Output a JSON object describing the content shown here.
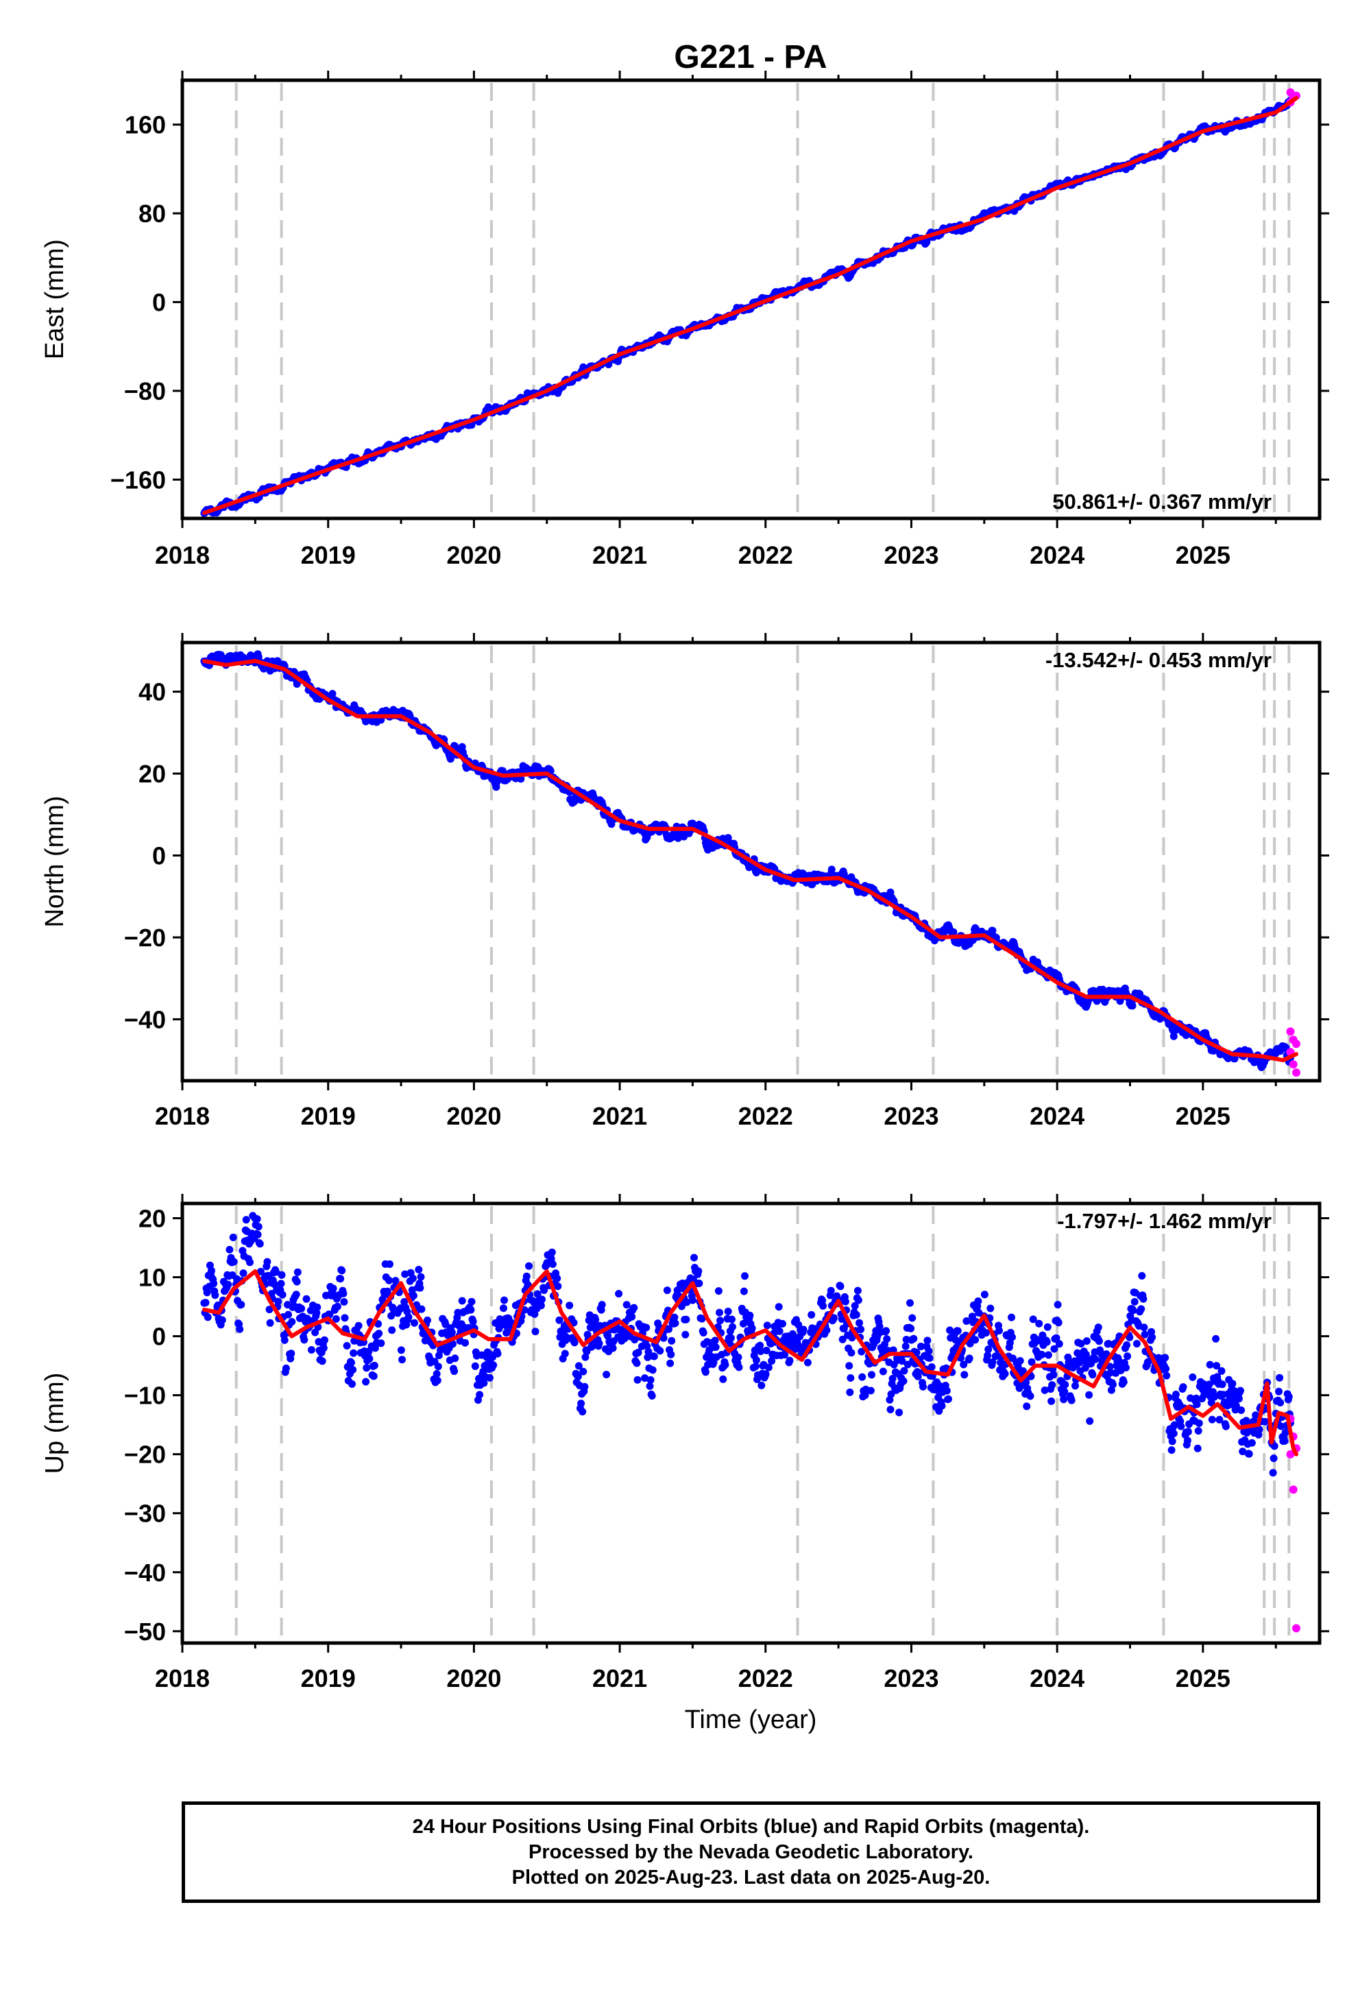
{
  "title": "G221 - PA",
  "xlabel": "Time (year)",
  "colors": {
    "final_orbits": "#0000ff",
    "rapid_orbits": "#ff00ff",
    "model": "#ff0000",
    "event_lines": "#c8c8c8"
  },
  "footer": {
    "line1": "24 Hour Positions Using Final Orbits (blue) and Rapid Orbits (magenta).",
    "line2": "Processed by the Nevada Geodetic Laboratory.",
    "line3": "Plotted on 2025-Aug-23. Last data on 2025-Aug-20."
  },
  "chart_data": [
    {
      "type": "scatter",
      "component": "East",
      "ylabel": "East (mm)",
      "rate_label": "50.861+/- 0.367 mm/yr",
      "xlim": [
        2018.0,
        2025.8
      ],
      "ylim": [
        -195,
        200
      ],
      "yticks": [
        -160,
        -80,
        0,
        80,
        160
      ],
      "xticks": [
        2018,
        2019,
        2020,
        2021,
        2022,
        2023,
        2024,
        2025
      ],
      "event_lines": [
        2018.37,
        2018.68,
        2020.12,
        2020.41,
        2022.22,
        2023.15,
        2024.0,
        2024.73,
        2025.42,
        2025.49,
        2025.59
      ],
      "final_orbits_start": 2018.15,
      "final_orbits_end": 2025.6,
      "rapid_orbits_start": 2025.6,
      "rapid_orbits_end": 2025.64,
      "model": {
        "x": [
          2018.15,
          2018.5,
          2019.0,
          2019.5,
          2020.0,
          2020.5,
          2021.0,
          2021.5,
          2022.0,
          2022.5,
          2023.0,
          2023.5,
          2024.0,
          2024.5,
          2025.0,
          2025.5,
          2025.64
        ],
        "y": [
          -190,
          -174,
          -151,
          -129,
          -106,
          -80,
          -47,
          -24,
          1,
          25,
          55,
          75,
          103,
          125,
          154,
          171,
          184
        ]
      },
      "scatter_sigma": 2.0,
      "rapid_values": [
        180,
        184,
        186,
        189
      ]
    },
    {
      "type": "scatter",
      "component": "North",
      "ylabel": "North (mm)",
      "rate_label": "-13.542+/- 0.453 mm/yr",
      "xlim": [
        2018.0,
        2025.8
      ],
      "ylim": [
        -55,
        52
      ],
      "yticks": [
        -40,
        -20,
        0,
        20,
        40
      ],
      "xticks": [
        2018,
        2019,
        2020,
        2021,
        2022,
        2023,
        2024,
        2025
      ],
      "event_lines": [
        2018.37,
        2018.68,
        2020.12,
        2020.41,
        2022.22,
        2023.15,
        2024.0,
        2024.73,
        2025.42,
        2025.49,
        2025.59
      ],
      "final_orbits_start": 2018.15,
      "final_orbits_end": 2025.6,
      "rapid_orbits_start": 2025.6,
      "rapid_orbits_end": 2025.64,
      "model": {
        "x": [
          2018.15,
          2018.3,
          2018.5,
          2018.7,
          2019.0,
          2019.2,
          2019.5,
          2019.7,
          2020.0,
          2020.2,
          2020.5,
          2020.7,
          2021.0,
          2021.2,
          2021.5,
          2021.7,
          2022.0,
          2022.2,
          2022.5,
          2022.7,
          2023.0,
          2023.2,
          2023.5,
          2023.7,
          2024.0,
          2024.2,
          2024.5,
          2024.7,
          2025.0,
          2025.2,
          2025.4,
          2025.55,
          2025.64
        ],
        "y": [
          47.5,
          46.5,
          47.5,
          45.5,
          38,
          34,
          34,
          30,
          21.5,
          19.5,
          20,
          15.5,
          8.5,
          6.5,
          6.5,
          3,
          -3.5,
          -6,
          -5.5,
          -8.5,
          -15,
          -20,
          -19.5,
          -24,
          -31,
          -34.5,
          -34.5,
          -38,
          -45,
          -48.5,
          -49,
          -50,
          -48.5
        ]
      },
      "scatter_sigma": 1.0,
      "rapid_values": [
        -43,
        -45,
        -46,
        -48,
        -51,
        -53
      ]
    },
    {
      "type": "scatter",
      "component": "Up",
      "ylabel": "Up (mm)",
      "rate_label": "-1.797+/- 1.462 mm/yr",
      "xlim": [
        2018.0,
        2025.8
      ],
      "ylim": [
        -52,
        22.5
      ],
      "yticks": [
        -50,
        -40,
        -30,
        -20,
        -10,
        0,
        10,
        20
      ],
      "xticks": [
        2018,
        2019,
        2020,
        2021,
        2022,
        2023,
        2024,
        2025
      ],
      "event_lines": [
        2018.37,
        2018.68,
        2020.12,
        2020.41,
        2022.22,
        2023.15,
        2024.0,
        2024.73,
        2025.42,
        2025.49,
        2025.59
      ],
      "final_orbits_start": 2018.15,
      "final_orbits_end": 2025.6,
      "rapid_orbits_start": 2025.6,
      "rapid_orbits_end": 2025.64,
      "model": {
        "x": [
          2018.15,
          2018.25,
          2018.35,
          2018.5,
          2018.6,
          2018.75,
          2018.85,
          2019.0,
          2019.1,
          2019.25,
          2019.35,
          2019.5,
          2019.6,
          2019.75,
          2019.85,
          2020.0,
          2020.1,
          2020.25,
          2020.35,
          2020.5,
          2020.6,
          2020.75,
          2020.85,
          2021.0,
          2021.1,
          2021.25,
          2021.35,
          2021.5,
          2021.6,
          2021.75,
          2021.85,
          2022.0,
          2022.1,
          2022.25,
          2022.35,
          2022.5,
          2022.6,
          2022.75,
          2022.85,
          2023.0,
          2023.1,
          2023.25,
          2023.35,
          2023.5,
          2023.6,
          2023.75,
          2023.85,
          2024.0,
          2024.1,
          2024.25,
          2024.35,
          2024.5,
          2024.6,
          2024.7,
          2024.78,
          2024.9,
          2025.0,
          2025.1,
          2025.25,
          2025.38,
          2025.44,
          2025.47,
          2025.52,
          2025.58,
          2025.62,
          2025.64
        ],
        "y": [
          4.5,
          4,
          8,
          11,
          6,
          0,
          1.5,
          3,
          0.5,
          -0.5,
          4,
          9,
          4,
          -1.5,
          -0.5,
          1,
          -0.5,
          -0.5,
          7,
          11,
          4,
          -1.5,
          0.5,
          2.5,
          0.5,
          -1,
          4,
          9,
          3,
          -2.5,
          -0.5,
          1,
          -1.5,
          -4,
          0,
          6,
          1,
          -4.5,
          -3,
          -3,
          -6,
          -6.5,
          -1.5,
          3.5,
          -2,
          -7.5,
          -5,
          -5,
          -6.5,
          -8.5,
          -4,
          1.5,
          -1,
          -6,
          -14,
          -12,
          -13.5,
          -11.5,
          -15.5,
          -15,
          -8,
          -18,
          -13,
          -13.5,
          -19,
          -20
        ]
      },
      "scatter_sigma": 4.0,
      "rapid_values": [
        -14,
        -17,
        -19,
        -20,
        -26,
        -49.5
      ]
    }
  ]
}
